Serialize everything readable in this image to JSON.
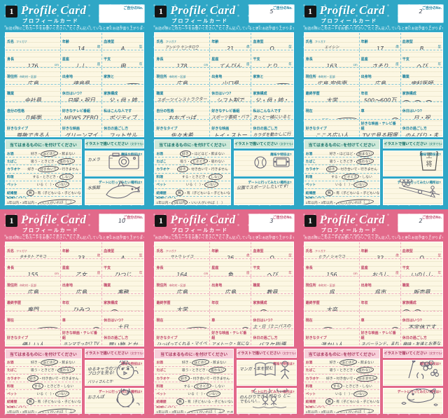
{
  "shared": {
    "logo": "1",
    "title": "Profile Card",
    "subtitle": "プロフィールカード",
    "instruction": "お話の際にこのカードをお使いください。たくさん記入していると更にお話が盛り上がります！",
    "no_label": "ご自分のNo.",
    "checklist_header": "当てはまるものに○を付けてください",
    "illust_header": "イラストで描いてください",
    "illust_header_note": "（文字でもOK!）",
    "hobby_q": "趣味や特技は?",
    "date_q": "デートに行ってみたい場所は?",
    "fields": {
      "A": [
        {
          "label": "氏名",
          "sub": "フリガナ"
        },
        {
          "label": "年齢",
          "unit": "歳"
        },
        {
          "label": "血液型",
          "unit": "型"
        },
        {
          "label": "身長",
          "unit": "cm"
        },
        {
          "label": "星座",
          "unit": "座"
        },
        {
          "label": "干支",
          "unit": "年"
        },
        {
          "label": "現住所",
          "sub": "市町村・区部"
        },
        {
          "label": "出身地"
        },
        {
          "label": "家族と",
          "opts": [
            "同居",
            "一人暮らし"
          ]
        },
        {
          "label": "職業"
        },
        {
          "label": "休日はいつ?"
        },
        {
          "label": "家族構成"
        },
        {
          "label": "自分の性格"
        },
        {
          "label": "好きなテレビ番組"
        },
        {
          "label": "私はこんな人です"
        },
        {
          "label": "好きなタイプ"
        },
        {
          "label": "好きな映画"
        },
        {
          "label": "休日の過ごし方"
        }
      ],
      "B": [
        {
          "label": "氏名",
          "sub": "フリガナ"
        },
        {
          "label": "年齢",
          "unit": "歳"
        },
        {
          "label": "血液型",
          "unit": "型"
        },
        {
          "label": "身長",
          "unit": "cm"
        },
        {
          "label": "星座",
          "unit": "座"
        },
        {
          "label": "干支",
          "unit": "年"
        },
        {
          "label": "現住所",
          "sub": "市町村・区部"
        },
        {
          "label": "出身地"
        },
        {
          "label": "職業"
        },
        {
          "label": "最終学歴"
        },
        {
          "label": "年収"
        },
        {
          "label": "家族構成",
          "opts": [
            "父",
            "母",
            "兄",
            "弟",
            "姉",
            "妹"
          ]
        },
        {
          "label": "現在",
          "opts": [
            "同居",
            "ひとり暮らし"
          ]
        },
        {
          "label": "車",
          "opts": [
            "有",
            "無"
          ]
        },
        {
          "label": "休日はいつ?"
        },
        {
          "label": "好きなタイプ"
        },
        {
          "label": "好きな映画・テレビ番組"
        },
        {
          "label": "休日の過ごし方"
        }
      ]
    },
    "checklist": [
      {
        "label": "お酒",
        "options": [
          "好き",
          "ほどほど",
          "飲まない"
        ]
      },
      {
        "label": "たばこ",
        "options": [
          "吸う",
          "ときどき",
          "吸わない"
        ]
      },
      {
        "label": "カラオケ",
        "options": [
          "好き",
          "付き合いで",
          "行きません"
        ]
      },
      {
        "label": "料理",
        "options": [
          "する",
          "ときどき",
          "しない"
        ]
      },
      {
        "label": "ペット",
        "options": [
          "いる（　）",
          "いない"
        ]
      },
      {
        "label": "結婚歴",
        "options": [
          "無",
          "有（子どもいる・子どもいない）"
        ]
      },
      {
        "label": "結婚について",
        "options": [
          "1年以内",
          "3年以内",
          "いい人がいれば（　）"
        ]
      }
    ]
  },
  "themes": {
    "blue": {
      "tile": "#2fa7c6",
      "label": "#177f9e",
      "bar_bg": "#cfe9d9",
      "bar_text": "#0c6b63",
      "line": "#86c9da"
    },
    "pink": {
      "tile": "#e2698a",
      "label": "#c04468",
      "bar_bg": "#f7d0da",
      "bar_text": "#a53058",
      "line": "#efaec1"
    }
  },
  "cards": [
    {
      "theme": "blue",
      "variant": "A",
      "no": "",
      "furigana": "",
      "values": [
        "",
        "14",
        "A",
        "176",
        "しし",
        "申",
        "広島",
        "徳島県",
        1,
        "会社員",
        "日曜・祝日",
        "父・母・姉",
        "几帳面",
        "NEWS ZERO",
        "ポジティブ",
        "尊敬できる人",
        "グリーンマイル",
        "フットサル"
      ],
      "checklist_circles": [
        1,
        2,
        1,
        2,
        1,
        0,
        2
      ],
      "marriage_note": "",
      "hobby": {
        "text": "カメラ",
        "note": "",
        "drawing": "camera"
      },
      "date": {
        "text": "水族館",
        "note": "",
        "drawing": "dolphin"
      }
    },
    {
      "theme": "blue",
      "variant": "A",
      "no": "5",
      "furigana": "アンドウ ケンタロウ",
      "values": [
        "安藤 健太郎",
        "21",
        "O",
        "178",
        "てんびん",
        "とり",
        "広島",
        "山口県",
        1,
        "スポーツインストラクター",
        "シフト制です。",
        "父・母・姉・弟",
        "おおざっぱ",
        "スポーツ番組・バラエティ",
        "きっと一緒にいると楽しい!",
        "佐々木希",
        "トイ・ストーリー",
        "カラダを動かしに行きます!"
      ],
      "checklist_circles": [
        0,
        1,
        0,
        2,
        1,
        0,
        1
      ],
      "marriage_note": "",
      "hobby": {
        "text": "",
        "note": "",
        "drawing": "ball-game"
      },
      "date": {
        "text": "公園でスポーツしたいです!",
        "note": "",
        "drawing": "none"
      }
    },
    {
      "theme": "blue",
      "variant": "B",
      "no": "2",
      "furigana": "エイシン",
      "values": [
        "英心ちゃん",
        "17",
        "B",
        "163",
        "さそり",
        "へび",
        "広島 安佐南",
        "広島",
        "歯科医師",
        "大学",
        "500〜600万",
        [
          0,
          1,
          2
        ],
        1,
        1,
        "日・祝",
        "こころ広い人",
        "TVで見る程度",
        "のんびり・まったり"
      ],
      "checklist_circles": [
        2,
        2,
        0,
        1,
        1,
        0,
        2
      ],
      "marriage_note": "",
      "hobby": {
        "text": "",
        "note": "",
        "drawing": "shogi"
      },
      "date": {
        "text": "",
        "note": "",
        "drawing": "bowling"
      }
    },
    {
      "theme": "pink",
      "variant": "B",
      "no": "10",
      "furigana": "タキモト アキコ",
      "values": [
        "瀧本 明子",
        "23",
        "A",
        "155",
        "乙女",
        "ひつじ",
        "広島",
        "広島",
        "事務",
        "専門",
        "ひみつ",
        [
          1,
          5
        ],
        1,
        1,
        "土日",
        "優しい人",
        "ホンマでっか!? TV",
        "買い物 とか"
      ],
      "checklist_circles": [
        1,
        2,
        0,
        0,
        1,
        0,
        2
      ],
      "marriage_note": "",
      "hobby": {
        "text": "ゆるキャラのツイッター・ブログを見る!",
        "note": "バリィさんとか",
        "drawing": "mascot"
      },
      "date": {
        "text": "おさんぽ",
        "note": "",
        "drawing": "penguin"
      }
    },
    {
      "theme": "pink",
      "variant": "B",
      "no": "3",
      "furigana": "サトウ レイコ",
      "values": [
        "佐藤 麗子",
        "26",
        "O",
        "164",
        "魚",
        "へび",
        "広島",
        "広島",
        "教員",
        "大学",
        "",
        [
          1,
          5
        ],
        1,
        1,
        "土・日（ミニバスのときあり）",
        "ひっぱってくれる・マイペース",
        "アメトーク・気になるドラマ",
        "バスケ指導"
      ],
      "checklist_circles": [
        1,
        2,
        0,
        1,
        1,
        0,
        2
      ],
      "marriage_note": "できれば早めに!?",
      "hobby": {
        "text": "マンガ・本を読む",
        "note": "",
        "drawing": "reading"
      },
      "date": {
        "text": "のんびりできる所なら どこでもいい…",
        "note": "",
        "drawing": "relax"
      }
    },
    {
      "theme": "pink",
      "variant": "B",
      "no": "2",
      "furigana": "ヒラノ ショウコ",
      "values": [
        "平野 祥子",
        "32",
        "O",
        "156",
        "おうし",
        "いのしし",
        "呉",
        "呉市",
        "販売員",
        "大卒",
        "",
        [
          0,
          1
        ],
        0,
        1,
        "不定休です",
        "温かい人",
        "ネバーランド、まれ（朝ドラ）",
        "趣味・友達とお茶など"
      ],
      "checklist_circles": [
        1,
        2,
        2,
        0,
        1,
        0,
        2
      ],
      "marriage_note": "",
      "hobby": {
        "text": "",
        "note": "",
        "drawing": "brush-flowers"
      },
      "date": {
        "text": "",
        "note": "",
        "drawing": "whale"
      }
    }
  ]
}
